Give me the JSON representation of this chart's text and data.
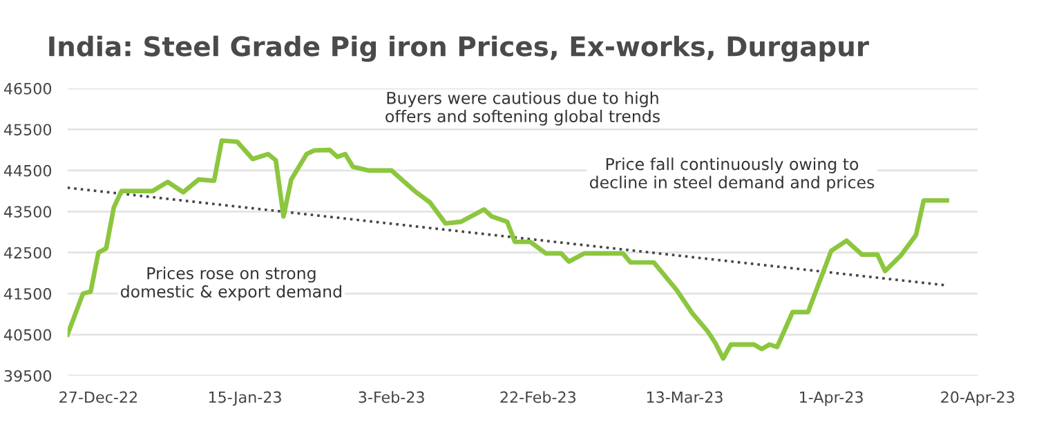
{
  "chart_data": {
    "type": "line",
    "title": "India: Steel Grade Pig iron Prices, Ex-works, Durgapur",
    "annotations": [
      "Prices rose on strong\ndomestic & export demand",
      "Buyers were cautious due to high\noffers and softening global trends",
      "Price fall continuously owing to\ndecline in steel demand and prices"
    ],
    "x": [
      "2022-12-23",
      "2022-12-25",
      "2022-12-26",
      "2022-12-27",
      "2022-12-28",
      "2022-12-29",
      "2022-12-30",
      "2023-01-03",
      "2023-01-05",
      "2023-01-07",
      "2023-01-09",
      "2023-01-11",
      "2023-01-12",
      "2023-01-14",
      "2023-01-16",
      "2023-01-18",
      "2023-01-19",
      "2023-01-20",
      "2023-01-21",
      "2023-01-23",
      "2023-01-24",
      "2023-01-26",
      "2023-01-27",
      "2023-01-28",
      "2023-01-29",
      "2023-01-31",
      "2023-02-03",
      "2023-02-06",
      "2023-02-08",
      "2023-02-10",
      "2023-02-12",
      "2023-02-15",
      "2023-02-16",
      "2023-02-18",
      "2023-02-19",
      "2023-02-21",
      "2023-02-23",
      "2023-02-25",
      "2023-02-26",
      "2023-02-28",
      "2023-03-05",
      "2023-03-06",
      "2023-03-09",
      "2023-03-12",
      "2023-03-14",
      "2023-03-16",
      "2023-03-17",
      "2023-03-18",
      "2023-03-19",
      "2023-03-22",
      "2023-03-23",
      "2023-03-24",
      "2023-03-25",
      "2023-03-27",
      "2023-03-29",
      "2023-04-01",
      "2023-04-03",
      "2023-04-05",
      "2023-04-07",
      "2023-04-08",
      "2023-04-10",
      "2023-04-12",
      "2023-04-13",
      "2023-04-16"
    ],
    "series": [
      {
        "color": "#8cc63f",
        "line_style": "solid",
        "values": [
          40500,
          41500,
          41550,
          42500,
          42600,
          43600,
          44000,
          44000,
          44220,
          43970,
          44280,
          44250,
          45230,
          45200,
          44780,
          44900,
          44750,
          43380,
          44280,
          44900,
          44990,
          45000,
          44830,
          44900,
          44590,
          44500,
          44500,
          44000,
          43720,
          43210,
          43250,
          43550,
          43380,
          43250,
          42760,
          42760,
          42480,
          42480,
          42280,
          42480,
          42480,
          42260,
          42260,
          41580,
          41020,
          40580,
          40290,
          39920,
          40260,
          40260,
          40150,
          40260,
          40200,
          41050,
          41050,
          42540,
          42790,
          42450,
          42450,
          42050,
          42420,
          42930,
          43770,
          43770
        ]
      },
      {
        "color": "#444444",
        "line_style": "dotted",
        "x": [
          "2022-12-23",
          "2023-04-16"
        ],
        "values": [
          44080,
          41700
        ]
      }
    ],
    "xlim": [
      "2022-12-23",
      "2023-04-20"
    ],
    "xticks": [
      {
        "value": "2022-12-27",
        "label": "27-Dec-22"
      },
      {
        "value": "2023-01-15",
        "label": "15-Jan-23"
      },
      {
        "value": "2023-02-03",
        "label": "3-Feb-23"
      },
      {
        "value": "2023-02-22",
        "label": "22-Feb-23"
      },
      {
        "value": "2023-03-13",
        "label": "13-Mar-23"
      },
      {
        "value": "2023-04-01",
        "label": "1-Apr-23"
      },
      {
        "value": "2023-04-20",
        "label": "20-Apr-23"
      }
    ],
    "ylim": [
      39500,
      46500
    ],
    "yticks": [
      39500,
      40500,
      41500,
      42500,
      43500,
      44500,
      45500,
      46500
    ],
    "grid": "y",
    "marker": "none"
  }
}
